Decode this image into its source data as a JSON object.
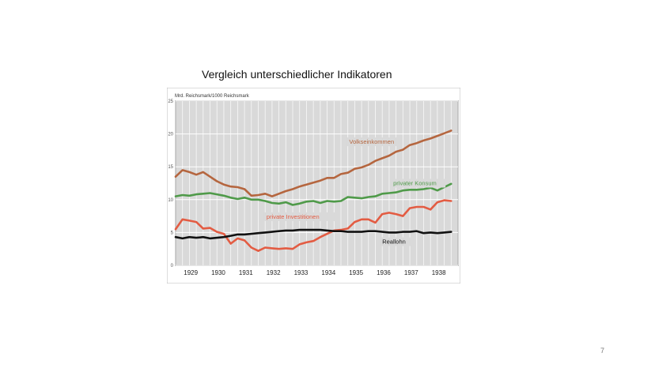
{
  "slide": {
    "title": "Vergleich unterschiedlicher Indikatoren",
    "page_number": "7"
  },
  "chart_data": {
    "type": "line",
    "title": "",
    "unit_label": "Mrd. Reichsmark/1000 Reichsmark",
    "xlabel": "",
    "ylabel": "",
    "ylim": [
      0,
      25
    ],
    "yticks": [
      0,
      5,
      10,
      15,
      20,
      25
    ],
    "xlim": [
      1928.5,
      1938.75
    ],
    "xticks": [
      "1929",
      "1930",
      "1931",
      "1932",
      "1933",
      "1934",
      "1935",
      "1936",
      "1937",
      "1938"
    ],
    "grid": true,
    "background": "#d9d9d9",
    "series": [
      {
        "name": "Volkseinkommen",
        "color": "#b5663f",
        "label_at": [
          1934.8,
          18.5
        ],
        "x": [
          1928.5,
          1928.75,
          1929.0,
          1929.25,
          1929.5,
          1929.75,
          1930.0,
          1930.25,
          1930.5,
          1930.75,
          1931.0,
          1931.25,
          1931.5,
          1931.75,
          1932.0,
          1932.25,
          1932.5,
          1932.75,
          1933.0,
          1933.25,
          1933.5,
          1933.75,
          1934.0,
          1934.25,
          1934.5,
          1934.75,
          1935.0,
          1935.25,
          1935.5,
          1935.75,
          1936.0,
          1936.25,
          1936.5,
          1936.75,
          1937.0,
          1937.25,
          1937.5,
          1937.75,
          1938.0,
          1938.25,
          1938.5
        ],
        "values": [
          13.5,
          14.5,
          14.2,
          13.8,
          14.2,
          13.5,
          12.8,
          12.3,
          12.0,
          11.9,
          11.6,
          10.6,
          10.7,
          10.9,
          10.5,
          10.9,
          11.3,
          11.6,
          12.0,
          12.3,
          12.6,
          12.9,
          13.3,
          13.3,
          13.9,
          14.1,
          14.7,
          14.9,
          15.3,
          15.9,
          16.3,
          16.7,
          17.3,
          17.6,
          18.3,
          18.6,
          19.0,
          19.3,
          19.7,
          20.1,
          20.5
        ]
      },
      {
        "name": "privater Konsum",
        "color": "#4f9a49",
        "label_at": [
          1936.4,
          12.2
        ],
        "x": [
          1928.5,
          1928.75,
          1929.0,
          1929.25,
          1929.5,
          1929.75,
          1930.0,
          1930.25,
          1930.5,
          1930.75,
          1931.0,
          1931.25,
          1931.5,
          1931.75,
          1932.0,
          1932.25,
          1932.5,
          1932.75,
          1933.0,
          1933.25,
          1933.5,
          1933.75,
          1934.0,
          1934.25,
          1934.5,
          1934.75,
          1935.0,
          1935.25,
          1935.5,
          1935.75,
          1936.0,
          1936.25,
          1936.5,
          1936.75,
          1937.0,
          1937.25,
          1937.5,
          1937.75,
          1938.0,
          1938.25,
          1938.5
        ],
        "values": [
          10.5,
          10.7,
          10.6,
          10.8,
          10.9,
          11.0,
          10.8,
          10.6,
          10.3,
          10.1,
          10.3,
          10.0,
          10.0,
          9.8,
          9.5,
          9.4,
          9.6,
          9.2,
          9.4,
          9.7,
          9.8,
          9.5,
          9.8,
          9.7,
          9.8,
          10.4,
          10.3,
          10.2,
          10.4,
          10.5,
          10.9,
          11.0,
          11.1,
          11.4,
          11.5,
          11.5,
          11.6,
          11.8,
          11.4,
          11.9,
          12.4
        ]
      },
      {
        "name": "private Investitionen",
        "color": "#e35c43",
        "label_at": [
          1931.8,
          7.1
        ],
        "x": [
          1928.5,
          1928.75,
          1929.0,
          1929.25,
          1929.5,
          1929.75,
          1930.0,
          1930.25,
          1930.5,
          1930.75,
          1931.0,
          1931.25,
          1931.5,
          1931.75,
          1932.0,
          1932.25,
          1932.5,
          1932.75,
          1933.0,
          1933.25,
          1933.5,
          1933.75,
          1934.0,
          1934.25,
          1934.5,
          1934.75,
          1935.0,
          1935.25,
          1935.5,
          1935.75,
          1936.0,
          1936.25,
          1936.5,
          1936.75,
          1937.0,
          1937.25,
          1937.5,
          1937.75,
          1938.0,
          1938.25,
          1938.5
        ],
        "values": [
          5.5,
          7.0,
          6.8,
          6.6,
          5.6,
          5.7,
          5.1,
          4.8,
          3.3,
          4.1,
          3.8,
          2.7,
          2.2,
          2.7,
          2.6,
          2.5,
          2.6,
          2.5,
          3.2,
          3.5,
          3.7,
          4.3,
          4.8,
          5.3,
          5.4,
          5.6,
          6.6,
          7.0,
          7.0,
          6.5,
          7.8,
          8.0,
          7.8,
          7.5,
          8.7,
          8.9,
          8.9,
          8.5,
          9.6,
          9.9,
          9.8
        ]
      },
      {
        "name": "Reallohn",
        "color": "#111111",
        "label_at": [
          1936.0,
          3.3
        ],
        "x": [
          1928.5,
          1928.75,
          1929.0,
          1929.25,
          1929.5,
          1929.75,
          1930.0,
          1930.25,
          1930.5,
          1930.75,
          1931.0,
          1931.25,
          1931.5,
          1931.75,
          1932.0,
          1932.25,
          1932.5,
          1932.75,
          1933.0,
          1933.25,
          1933.5,
          1933.75,
          1934.0,
          1934.25,
          1934.5,
          1934.75,
          1935.0,
          1935.25,
          1935.5,
          1935.75,
          1936.0,
          1936.25,
          1936.5,
          1936.75,
          1937.0,
          1937.25,
          1937.5,
          1937.75,
          1938.0,
          1938.25,
          1938.5
        ],
        "values": [
          4.3,
          4.1,
          4.3,
          4.2,
          4.3,
          4.1,
          4.2,
          4.3,
          4.5,
          4.7,
          4.7,
          4.8,
          4.9,
          5.0,
          5.1,
          5.2,
          5.3,
          5.3,
          5.4,
          5.4,
          5.4,
          5.4,
          5.3,
          5.2,
          5.2,
          5.1,
          5.1,
          5.1,
          5.2,
          5.2,
          5.1,
          5.0,
          5.0,
          5.1,
          5.1,
          5.2,
          4.9,
          5.0,
          4.9,
          5.0,
          5.1
        ]
      }
    ]
  }
}
